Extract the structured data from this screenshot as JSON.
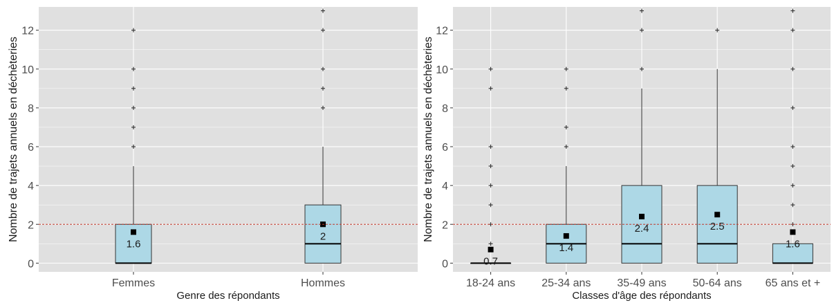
{
  "colors": {
    "panel_bg": "#e0e0e0",
    "grid": "#ffffff",
    "box_fill": "#add8e6",
    "box_stroke": "#333333",
    "reference_line": "#c0392b"
  },
  "chart_data": [
    {
      "type": "boxplot",
      "xlabel": "Genre des répondants",
      "ylabel": "Nombre de trajets annuels en déchèteries",
      "ylim": [
        -0.45,
        13.2
      ],
      "yticks": [
        0,
        2,
        4,
        6,
        8,
        10,
        12
      ],
      "grid": true,
      "reference_line": 2,
      "categories": [
        "Femmes",
        "Hommes"
      ],
      "boxes": [
        {
          "category": "Femmes",
          "q1": 0,
          "median": 0,
          "q3": 2,
          "whisker_low": 0,
          "whisker_high": 5,
          "mean": 1.6,
          "mean_label": "1.6",
          "outliers": [
            6,
            7,
            8,
            9,
            10,
            12
          ]
        },
        {
          "category": "Hommes",
          "q1": 0,
          "median": 1,
          "q3": 3,
          "whisker_low": 0,
          "whisker_high": 6,
          "mean": 2.0,
          "mean_label": "2",
          "outliers": [
            8,
            9,
            10,
            12,
            13
          ]
        }
      ]
    },
    {
      "type": "boxplot",
      "xlabel": "Classes d'âge des répondants",
      "ylabel": "Nombre de trajets annuels en déchèteries",
      "ylim": [
        -0.45,
        13.2
      ],
      "yticks": [
        0,
        2,
        4,
        6,
        8,
        10,
        12
      ],
      "grid": true,
      "reference_line": 2,
      "categories": [
        "18-24 ans",
        "25-34 ans",
        "35-49 ans",
        "50-64 ans",
        "65 ans et +"
      ],
      "boxes": [
        {
          "category": "18-24 ans",
          "q1": 0,
          "median": 0,
          "q3": 0,
          "whisker_low": 0,
          "whisker_high": 0,
          "mean": 0.7,
          "mean_label": "0.7",
          "outliers": [
            1,
            2,
            3,
            4,
            5,
            6,
            9,
            10
          ]
        },
        {
          "category": "25-34 ans",
          "q1": 0,
          "median": 1,
          "q3": 2,
          "whisker_low": 0,
          "whisker_high": 5,
          "mean": 1.4,
          "mean_label": "1.4",
          "outliers": [
            6,
            7,
            9,
            10
          ]
        },
        {
          "category": "35-49 ans",
          "q1": 0,
          "median": 1,
          "q3": 4,
          "whisker_low": 0,
          "whisker_high": 9,
          "mean": 2.4,
          "mean_label": "2.4",
          "outliers": [
            10,
            12,
            13
          ]
        },
        {
          "category": "50-64 ans",
          "q1": 0,
          "median": 1,
          "q3": 4,
          "whisker_low": 0,
          "whisker_high": 10,
          "mean": 2.5,
          "mean_label": "2.5",
          "outliers": [
            12
          ]
        },
        {
          "category": "65 ans et +",
          "q1": 0,
          "median": 0,
          "q3": 1,
          "whisker_low": 0,
          "whisker_high": 1,
          "mean": 1.6,
          "mean_label": "1.6",
          "outliers": [
            2,
            3,
            4,
            5,
            6,
            8,
            10,
            12,
            13
          ]
        }
      ]
    }
  ]
}
